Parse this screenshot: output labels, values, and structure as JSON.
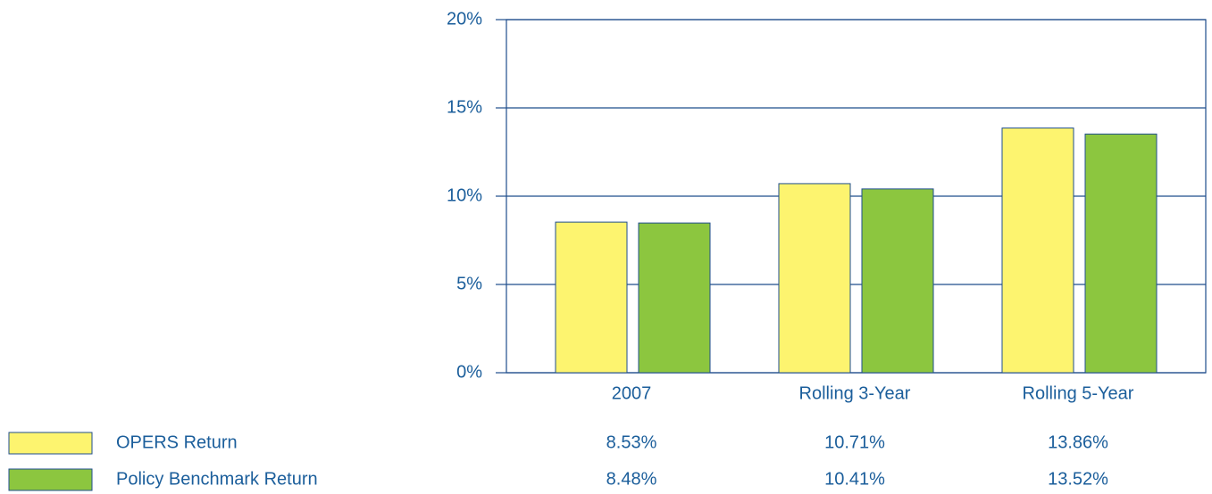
{
  "chart_data": {
    "type": "bar",
    "categories": [
      "2007",
      "Rolling 3-Year",
      "Rolling 5-Year"
    ],
    "series": [
      {
        "name": "OPERS Return",
        "color": "#fdf46f",
        "values": [
          8.53,
          10.71,
          13.86
        ],
        "value_labels": [
          "8.53%",
          "10.71%",
          "13.86%"
        ]
      },
      {
        "name": "Policy Benchmark Return",
        "color": "#8cc63f",
        "values": [
          8.48,
          10.41,
          13.52
        ],
        "value_labels": [
          "8.48%",
          "10.41%",
          "13.52%"
        ]
      }
    ],
    "ylim": [
      0,
      20
    ],
    "yticks": [
      {
        "value": 0,
        "label": "0%"
      },
      {
        "value": 5,
        "label": "5%"
      },
      {
        "value": 10,
        "label": "10%"
      },
      {
        "value": 15,
        "label": "15%"
      },
      {
        "value": 20,
        "label": "20%"
      }
    ],
    "grid": true
  }
}
